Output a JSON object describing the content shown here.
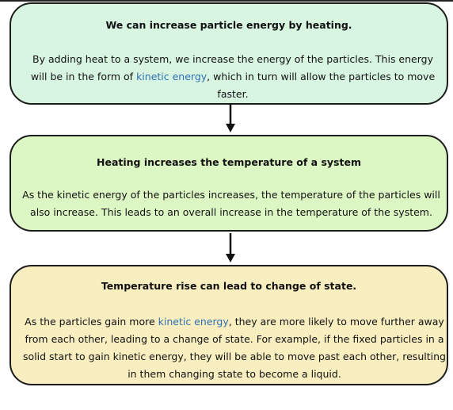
{
  "boxes": [
    {
      "title": "We can increase particle energy by heating.",
      "body_before": "By adding heat to a system, we increase the energy of the particles. This energy will be in the form of ",
      "link": "kinetic energy",
      "body_after": ", which in turn will allow the particles to move faster.",
      "background": "#d8f5e2"
    },
    {
      "title": "Heating increases the temperature of a system",
      "body": "As the kinetic energy of the particles increases, the temperature of the particles will also increase. This leads to an overall increase in the temperature of the system.",
      "background": "#ddf7c4"
    },
    {
      "title": "Temperature rise can lead to change of state.",
      "body_before": "As the particles gain more ",
      "link": "kinetic energy",
      "body_after": ", they are more likely to move further away from each other, leading to a change of state. For example, if the fixed particles in a solid start to gain kinetic energy, they will be able to move past each other, resulting in them changing state to become a liquid.",
      "background": "#f8eebf"
    }
  ],
  "colors": {
    "link": "#2f6fb3",
    "border": "#1c1c1c",
    "arrow": "#111111"
  },
  "arrows": [
    "down-arrow-icon",
    "down-arrow-icon"
  ]
}
